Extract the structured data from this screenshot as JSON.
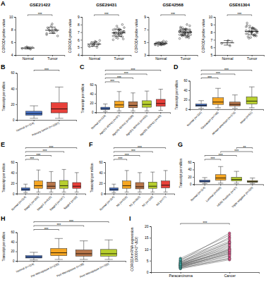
{
  "chart_data": [
    {
      "type": "dot",
      "panel": "A",
      "title": "GSE21422",
      "y_label": "CORO2A probe value",
      "categories": [
        "Normal",
        "Tumor"
      ],
      "values": [
        [
          5.0,
          5.2,
          4.9,
          5.1,
          5.3
        ],
        [
          7.2,
          7.8,
          8.1,
          7.5,
          8.6,
          7.9,
          8.3,
          7.0,
          8.0,
          7.6,
          8.9,
          7.7,
          8.2,
          7.4
        ]
      ],
      "mean": [
        5.1,
        7.9
      ],
      "error": [
        0.15,
        0.5
      ],
      "ylim": [
        4,
        10
      ],
      "yticks": [
        4,
        6,
        8,
        10
      ],
      "color": "#222222",
      "comparisons": [
        {
          "pair": [
            0,
            1
          ],
          "label": "***"
        }
      ]
    },
    {
      "type": "dot",
      "title": "GSE29431",
      "y_label": "CORO2A probe value",
      "categories": [
        "Normal",
        "Tumor"
      ],
      "values": [
        [
          5.2,
          5.5,
          5.0,
          5.8,
          5.4,
          5.6,
          5.1,
          5.9,
          5.3,
          5.7,
          5.5,
          5.2
        ],
        [
          6.5,
          7.1,
          6.8,
          7.4,
          6.2,
          7.0,
          6.9,
          7.6,
          6.4,
          7.2,
          6.7,
          7.8,
          6.6,
          7.3,
          6.1,
          7.0,
          6.8,
          7.5,
          6.3,
          6.9,
          7.1,
          8.0,
          6.5,
          7.2,
          6.7,
          7.4,
          6.0,
          7.0,
          6.8,
          7.3
        ]
      ],
      "mean": [
        5.43,
        6.9
      ],
      "error": [
        0.27,
        0.45
      ],
      "ylim": [
        4,
        9
      ],
      "yticks": [
        4,
        5,
        6,
        7,
        8,
        9
      ],
      "color": "#222222",
      "comparisons": [
        {
          "pair": [
            0,
            1
          ],
          "label": "***"
        }
      ]
    },
    {
      "type": "dot",
      "title": "GSE42568",
      "y_label": "CORO2A probe value",
      "categories": [
        "Normal",
        "Tumor"
      ],
      "values": [
        [
          4.6,
          4.9,
          4.7,
          5.0,
          4.8,
          4.5,
          4.9,
          5.1,
          4.7,
          4.8,
          4.6,
          5.0,
          4.9,
          4.7,
          4.8,
          5.2,
          4.6
        ],
        [
          6.2,
          6.8,
          5.9,
          7.1,
          6.5,
          6.0,
          7.4,
          6.6,
          5.7,
          6.9,
          6.3,
          7.0,
          6.1,
          6.7,
          7.6,
          6.4,
          5.8,
          6.9,
          6.2,
          7.2,
          6.6,
          6.0,
          7.8,
          6.5,
          6.3,
          6.8,
          5.6,
          7.0,
          6.4,
          6.7,
          6.1,
          7.3,
          6.9,
          6.2,
          6.5,
          5.9,
          7.1,
          6.6,
          6.3,
          6.8
        ]
      ],
      "mean": [
        4.8,
        6.6
      ],
      "error": [
        0.2,
        0.5
      ],
      "ylim": [
        3,
        9
      ],
      "yticks": [
        3,
        5,
        7,
        9
      ],
      "color": "#222222",
      "comparisons": [
        {
          "pair": [
            0,
            1
          ],
          "label": "***"
        }
      ]
    },
    {
      "type": "dot",
      "title": "GSE61304",
      "y_label": "CORO2A probe value",
      "categories": [
        "Normal",
        "Tumor"
      ],
      "values": [
        [
          6.5,
          6.8,
          6.2,
          6.9
        ],
        [
          7.8,
          8.3,
          7.5,
          8.6,
          8.0,
          7.2,
          8.9,
          8.1,
          7.6,
          8.4,
          7.9,
          8.2,
          7.4,
          8.7,
          8.0,
          7.7,
          8.5,
          7.3,
          8.1,
          9.2,
          7.9,
          8.3,
          7.6,
          8.0,
          8.8,
          7.8,
          8.2,
          7.5,
          8.4,
          8.1
        ]
      ],
      "mean": [
        6.6,
        8.1
      ],
      "error": [
        0.3,
        0.45
      ],
      "ylim": [
        5,
        10
      ],
      "yticks": [
        5,
        6,
        7,
        8,
        9,
        10
      ],
      "color": "#222222",
      "comparisons": [
        {
          "pair": [
            0,
            1
          ],
          "label": "***"
        }
      ]
    },
    {
      "type": "box",
      "panel": "B",
      "y_label": "Transcript per million",
      "categories": [
        "Normal (n=114)",
        "Primary tumor (n=1097)"
      ],
      "boxes": [
        [
          2,
          6,
          8,
          11,
          18
        ],
        [
          2,
          9,
          14,
          22,
          42
        ]
      ],
      "colors": [
        "#4a74c9",
        "#e8403a"
      ],
      "ylim": [
        0,
        60
      ],
      "yticks": [
        0,
        20,
        40,
        60
      ],
      "comparisons": [
        {
          "pair": [
            0,
            1
          ],
          "label": "***"
        }
      ]
    },
    {
      "type": "box",
      "panel": "C",
      "y_label": "Transcript per million",
      "categories": [
        "Normal (n=114)",
        "Age(21-40Yrs) (n=97)",
        "Age(41-60Yrs) (n=508)",
        "Age(61-80Yrs) (n=431)",
        "Age(81-100Yrs) (n=43)"
      ],
      "boxes": [
        [
          2,
          6,
          8,
          11,
          18
        ],
        [
          3,
          10,
          16,
          24,
          45
        ],
        [
          3,
          10,
          15,
          23,
          42
        ],
        [
          3,
          11,
          17,
          25,
          46
        ],
        [
          4,
          13,
          19,
          28,
          50
        ]
      ],
      "colors": [
        "#4a74c9",
        "#f5a623",
        "#b8764a",
        "#b8cf2e",
        "#e8403a"
      ],
      "ylim": [
        0,
        60
      ],
      "yticks": [
        0,
        20,
        40,
        60
      ],
      "comparisons": [
        {
          "pair": [
            0,
            1
          ],
          "label": "***"
        },
        {
          "pair": [
            0,
            2
          ],
          "label": "***"
        },
        {
          "pair": [
            0,
            3
          ],
          "label": "***"
        },
        {
          "pair": [
            0,
            4
          ],
          "label": "***"
        }
      ]
    },
    {
      "type": "box",
      "panel": "D",
      "y_label": "Transcript per million",
      "categories": [
        "Normal (n=114)",
        "Caucasian (n=748)",
        "African-american (n=179)",
        "Asian (n=61)"
      ],
      "boxes": [
        [
          2,
          6,
          8,
          11,
          18
        ],
        [
          3,
          10,
          15,
          24,
          44
        ],
        [
          2,
          7,
          10,
          15,
          30
        ],
        [
          3,
          11,
          17,
          26,
          47
        ]
      ],
      "colors": [
        "#4a74c9",
        "#f5a623",
        "#b8764a",
        "#b8cf2e"
      ],
      "ylim": [
        0,
        60
      ],
      "yticks": [
        0,
        20,
        40,
        60
      ],
      "comparisons": [
        {
          "pair": [
            0,
            1
          ],
          "label": "***"
        },
        {
          "pair": [
            0,
            2
          ],
          "label": "***"
        },
        {
          "pair": [
            0,
            3
          ],
          "label": "***"
        }
      ]
    },
    {
      "type": "box",
      "panel": "E",
      "y_label": "Transcript per million",
      "categories": [
        "Normal (n=114)",
        "Stage1 (n=183)",
        "Stage2 (n=615)",
        "Stage3 (n=247)",
        "Stage4 (n=20)"
      ],
      "boxes": [
        [
          2,
          6,
          8,
          11,
          18
        ],
        [
          3,
          10,
          15,
          24,
          45
        ],
        [
          3,
          9,
          14,
          22,
          42
        ],
        [
          3,
          10,
          15,
          25,
          46
        ],
        [
          3,
          10,
          14,
          21,
          40
        ]
      ],
      "colors": [
        "#4a74c9",
        "#f5a623",
        "#b8764a",
        "#b8cf2e",
        "#e8403a"
      ],
      "ylim": [
        0,
        60
      ],
      "yticks": [
        0,
        20,
        40,
        60
      ],
      "comparisons": [
        {
          "pair": [
            0,
            1
          ],
          "label": "***"
        },
        {
          "pair": [
            0,
            2
          ],
          "label": "***"
        },
        {
          "pair": [
            0,
            3
          ],
          "label": "***"
        },
        {
          "pair": [
            0,
            4
          ],
          "label": "***"
        }
      ]
    },
    {
      "type": "box",
      "panel": "F",
      "y_label": "Transcript per million",
      "categories": [
        "Normal (n=114)",
        "N0 (n=516)",
        "N1 (n=362)",
        "N2 (n=120)",
        "N3 (n=77)"
      ],
      "boxes": [
        [
          2,
          6,
          8,
          11,
          18
        ],
        [
          3,
          10,
          15,
          24,
          44
        ],
        [
          3,
          9,
          13,
          21,
          40
        ],
        [
          3,
          10,
          14,
          22,
          41
        ],
        [
          3,
          11,
          16,
          24,
          44
        ]
      ],
      "colors": [
        "#4a74c9",
        "#f5a623",
        "#b8764a",
        "#b8cf2e",
        "#e8403a"
      ],
      "ylim": [
        0,
        60
      ],
      "yticks": [
        0,
        20,
        40,
        60
      ],
      "comparisons": [
        {
          "pair": [
            0,
            1
          ],
          "label": "***"
        },
        {
          "pair": [
            0,
            2
          ],
          "label": "***"
        },
        {
          "pair": [
            0,
            3
          ],
          "label": "***"
        },
        {
          "pair": [
            0,
            4
          ],
          "label": "***"
        }
      ]
    },
    {
      "type": "box",
      "panel": "G",
      "y_label": "Transcript per million",
      "categories": [
        "Normal (n=114)",
        "Luminal (n=566)",
        "HER2 Positive (n=37)",
        "Triple negative (n=116)"
      ],
      "boxes": [
        [
          2,
          6,
          8,
          11,
          18
        ],
        [
          3,
          11,
          17,
          26,
          48
        ],
        [
          3,
          9,
          13,
          19,
          35
        ],
        [
          2,
          5,
          7,
          10,
          17
        ]
      ],
      "colors": [
        "#4a74c9",
        "#f5a623",
        "#b8cf2e",
        "#a89a4a"
      ],
      "ylim": [
        0,
        60
      ],
      "yticks": [
        0,
        20,
        40,
        60
      ],
      "comparisons": [
        {
          "pair": [
            0,
            1
          ],
          "label": "***"
        },
        {
          "pair": [
            0,
            2
          ],
          "label": "***"
        },
        {
          "pair": [
            1,
            3
          ],
          "label": "***"
        },
        {
          "pair": [
            2,
            3
          ],
          "label": "**"
        }
      ]
    },
    {
      "type": "box",
      "panel": "H",
      "y_label": "Transcript per million",
      "categories": [
        "Normal (n=114)",
        "Pre-Menopause (n=230)",
        "Peri-Menopause (n=36)",
        "Post-Menopause (n=700)"
      ],
      "boxes": [
        [
          2,
          6,
          8,
          11,
          18
        ],
        [
          3,
          11,
          17,
          26,
          47
        ],
        [
          3,
          10,
          15,
          23,
          42
        ],
        [
          3,
          10,
          15,
          24,
          44
        ]
      ],
      "colors": [
        "#4a74c9",
        "#f5a623",
        "#b8764a",
        "#b8cf2e"
      ],
      "ylim": [
        0,
        60
      ],
      "yticks": [
        0,
        20,
        40,
        60
      ],
      "comparisons": [
        {
          "pair": [
            0,
            1
          ],
          "label": "***"
        },
        {
          "pair": [
            0,
            2
          ],
          "label": "***"
        },
        {
          "pair": [
            0,
            3
          ],
          "label": "***"
        }
      ]
    },
    {
      "type": "paired",
      "panel": "I",
      "y_label": [
        "CORO2A mRNA expression",
        "(10000×2^-ΔCt)"
      ],
      "categories": [
        "Paracarcinoma",
        "Cancer"
      ],
      "values": [
        [
          2.1,
          3.5,
          1.8,
          4.2,
          2.9,
          5.1,
          3.3,
          1.5,
          2.6,
          4.8,
          3.9,
          2.2,
          6.0,
          3.1,
          2.7,
          4.4,
          1.9,
          3.6,
          5.5,
          2.4,
          3.0,
          4.0,
          2.8,
          3.4
        ],
        [
          8.5,
          12.3,
          6.1,
          15.2,
          9.8,
          17.0,
          11.1,
          5.4,
          7.9,
          13.6,
          10.4,
          6.8,
          16.1,
          9.1,
          8.0,
          12.9,
          5.9,
          11.7,
          14.5,
          7.3,
          10.0,
          13.0,
          8.8,
          9.5
        ]
      ],
      "colors": [
        "#3aa6a0",
        "#e0508a"
      ],
      "ylim": [
        0,
        20
      ],
      "yticks": [
        0,
        5,
        10,
        15,
        20
      ],
      "comparisons": [
        {
          "pair": [
            0,
            1
          ],
          "label": "***"
        }
      ]
    }
  ]
}
